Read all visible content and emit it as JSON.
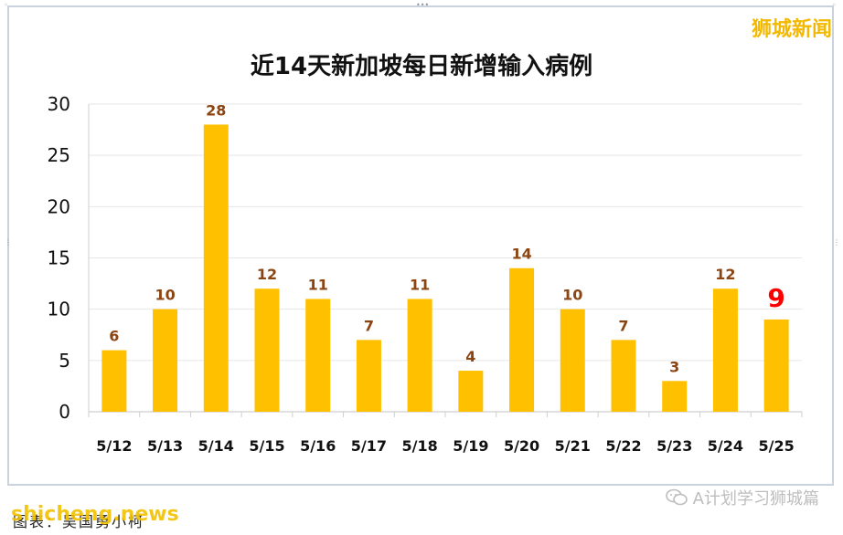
{
  "header": {
    "brand": "狮城新闻"
  },
  "footer": {
    "source": "图表：吴国勇小柯",
    "site": "shicheng.news",
    "wechat_account": "A计划学习狮城篇"
  },
  "colors": {
    "bar": "#ffc000",
    "data_label": "#8b4513",
    "highlight_label": "#ff0000",
    "brand": "#f3b800"
  },
  "icons": [
    "wechat-icon"
  ],
  "chart_data": {
    "type": "bar",
    "title": "近14天新加坡每日新增输入病例",
    "xlabel": "",
    "ylabel": "",
    "categories": [
      "5/12",
      "5/13",
      "5/14",
      "5/15",
      "5/16",
      "5/17",
      "5/18",
      "5/19",
      "5/20",
      "5/21",
      "5/22",
      "5/23",
      "5/24",
      "5/25"
    ],
    "values": [
      6,
      10,
      28,
      12,
      11,
      7,
      11,
      4,
      14,
      10,
      7,
      3,
      12,
      9
    ],
    "ylim": [
      0,
      30
    ],
    "yticks": [
      0,
      5,
      10,
      15,
      20,
      25,
      30
    ],
    "grid": true,
    "legend": "none",
    "highlighted_category": "5/25"
  }
}
